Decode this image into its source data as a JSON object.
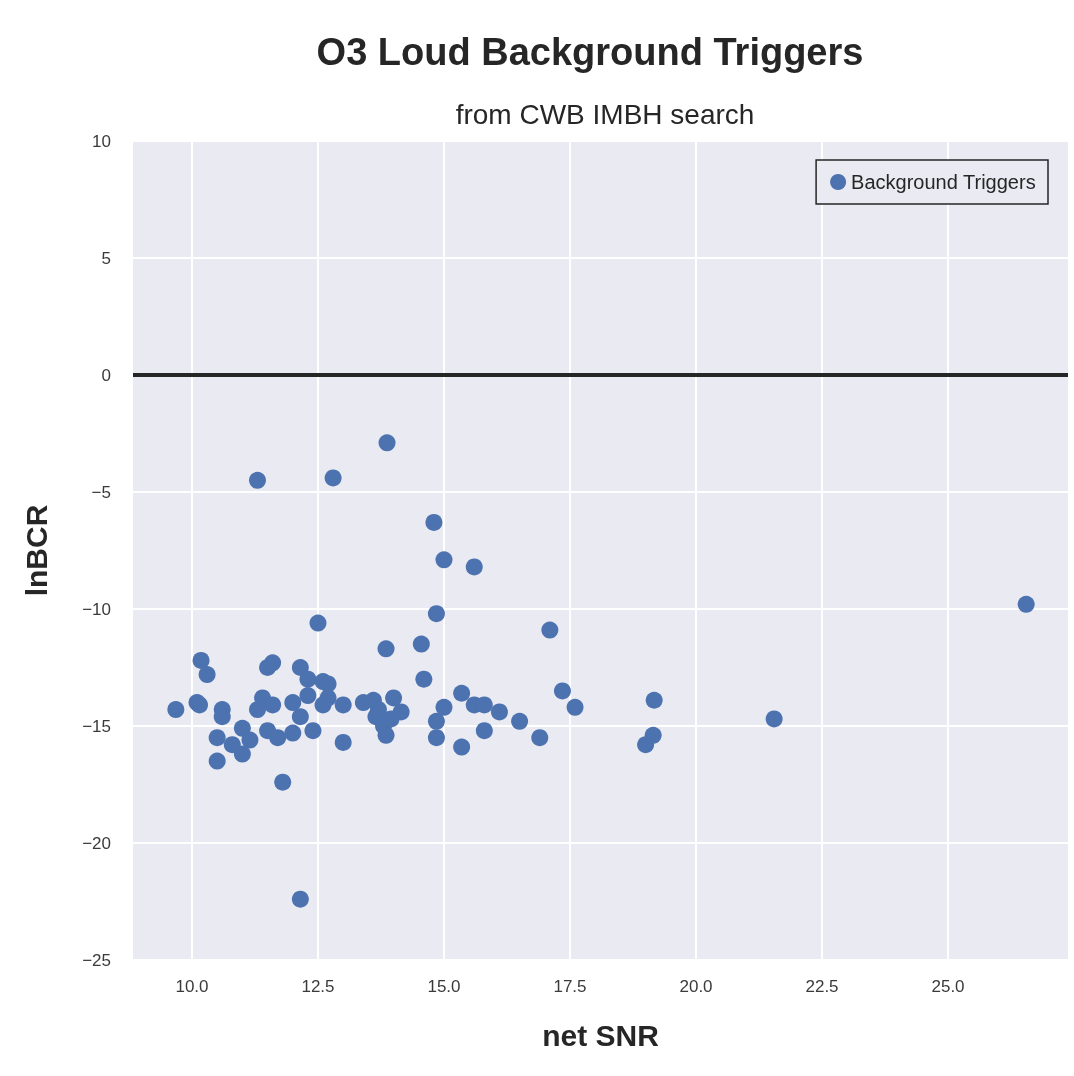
{
  "chart_data": {
    "type": "scatter",
    "title": "O3 Loud Background Triggers",
    "subtitle": "from CWB IMBH search",
    "xlabel": "net SNR",
    "ylabel": "lnBCR",
    "series": [
      {
        "name": "Background Triggers",
        "color": "#4c72b0",
        "x": [
          9.68,
          10.1,
          10.15,
          10.18,
          10.3,
          10.5,
          10.5,
          10.6,
          10.6,
          10.8,
          11.0,
          11.0,
          11.15,
          11.3,
          11.3,
          11.4,
          11.5,
          11.5,
          11.6,
          11.6,
          11.7,
          11.8,
          12.0,
          12.0,
          12.15,
          12.15,
          12.15,
          12.3,
          12.3,
          12.4,
          12.5,
          12.6,
          12.6,
          12.7,
          12.7,
          12.8,
          13.0,
          13.0,
          13.4,
          13.6,
          13.65,
          13.7,
          13.8,
          13.85,
          13.87,
          13.85,
          13.95,
          14.0,
          14.15,
          14.55,
          14.6,
          14.8,
          14.85,
          14.85,
          14.85,
          15.0,
          15.0,
          15.35,
          15.35,
          15.6,
          15.6,
          15.8,
          15.8,
          16.1,
          16.5,
          16.9,
          17.1,
          17.35,
          17.6,
          19.0,
          19.15,
          19.17,
          21.55,
          26.55
        ],
        "values": [
          -14.3,
          -14.0,
          -14.1,
          -12.2,
          -12.8,
          -15.5,
          -16.5,
          -14.3,
          -14.6,
          -15.8,
          -15.1,
          -16.2,
          -15.6,
          -4.5,
          -14.3,
          -13.8,
          -15.2,
          -12.5,
          -12.3,
          -14.1,
          -15.5,
          -17.4,
          -14.0,
          -15.3,
          -12.5,
          -14.6,
          -22.4,
          -13.7,
          -13.0,
          -15.2,
          -10.6,
          -14.1,
          -13.1,
          -13.2,
          -13.8,
          -4.4,
          -14.1,
          -15.7,
          -14.0,
          -13.9,
          -14.6,
          -14.3,
          -15.0,
          -11.7,
          -2.9,
          -15.4,
          -14.7,
          -13.8,
          -14.4,
          -11.5,
          -13.0,
          -6.3,
          -10.2,
          -14.8,
          -15.5,
          -7.9,
          -14.2,
          -13.6,
          -15.9,
          -8.2,
          -14.1,
          -14.1,
          -15.2,
          -14.4,
          -14.8,
          -15.5,
          -10.9,
          -13.5,
          -14.2,
          -15.8,
          -15.4,
          -13.9,
          -14.7,
          -9.8
        ]
      }
    ],
    "xlim": [
      8.83,
      27.38
    ],
    "xticks": [
      {
        "value": 10,
        "label": "10.0"
      },
      12.5,
      {
        "value": 15,
        "label": "15.0"
      },
      17.5,
      {
        "value": 20,
        "label": "20.0"
      },
      22.5,
      {
        "value": 25,
        "label": "25.0"
      }
    ],
    "ylim": [
      -25,
      10
    ],
    "yticks": [
      -25,
      -20,
      -15,
      -10,
      -5,
      0,
      5,
      10
    ],
    "ref_lines": [
      {
        "axis": "y",
        "value": 0,
        "color": "#262626",
        "line_style": "solid"
      }
    ],
    "grid": true,
    "legend": "top right",
    "marker": "circle"
  }
}
